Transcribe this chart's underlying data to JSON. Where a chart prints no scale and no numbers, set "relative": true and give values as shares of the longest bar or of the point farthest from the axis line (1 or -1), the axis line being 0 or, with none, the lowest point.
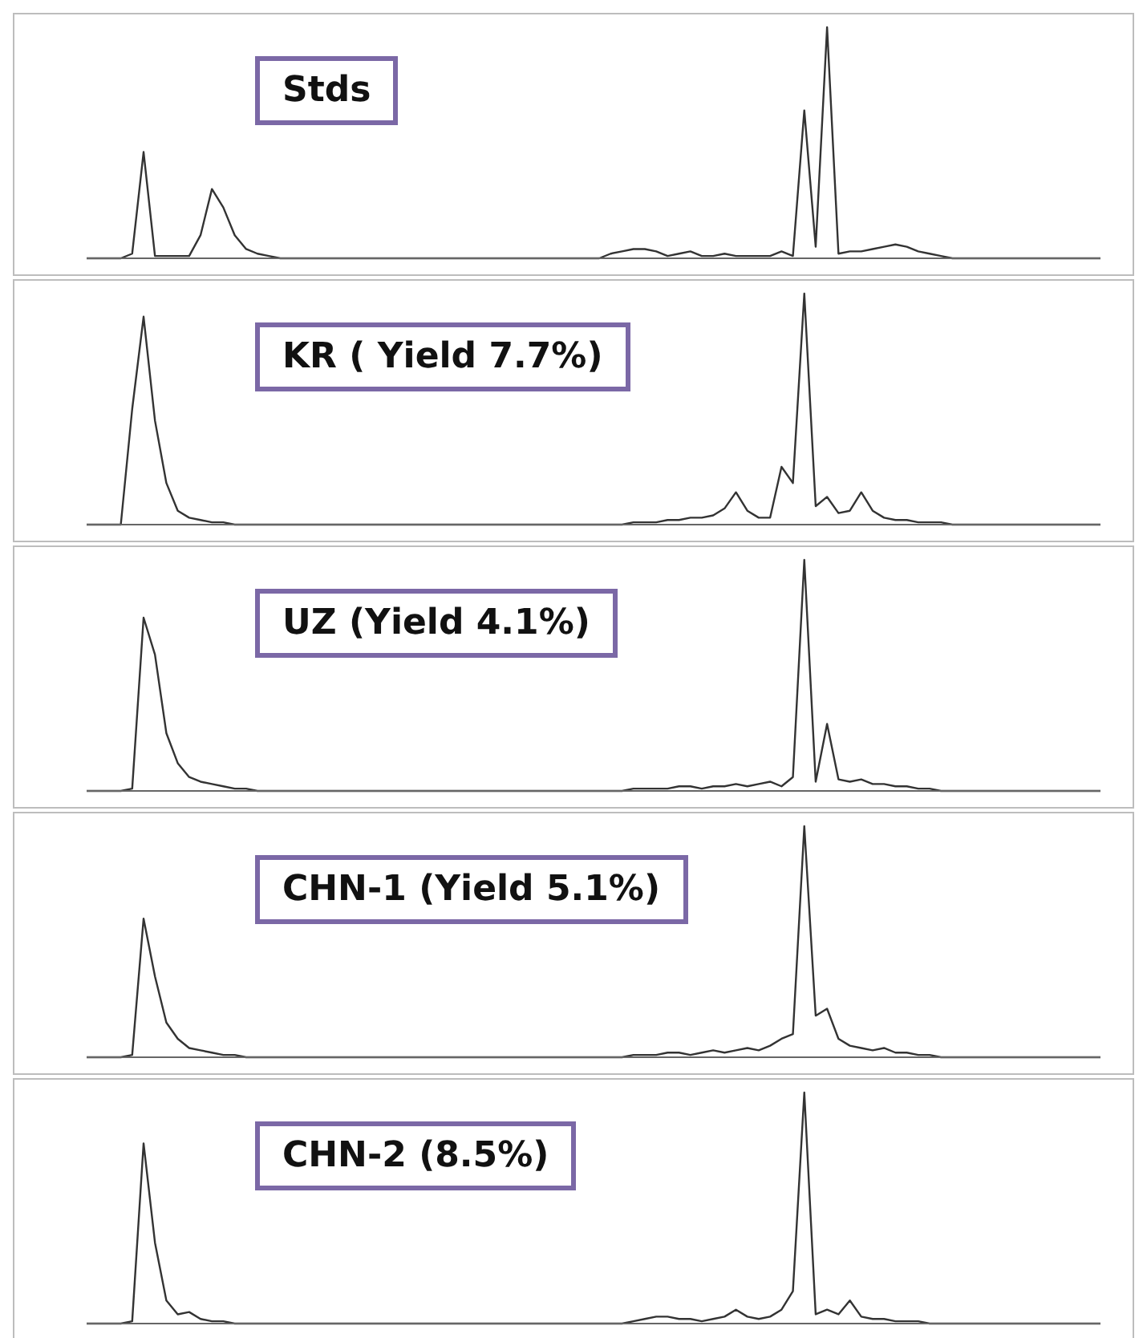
{
  "chart_data": [
    {
      "type": "line",
      "title": "Stds",
      "relative": true,
      "color": "#333333",
      "categories": [
        null,
        null,
        null,
        null,
        null,
        null,
        null,
        null,
        null,
        null,
        null,
        null,
        null,
        null,
        null,
        null,
        null,
        null,
        null,
        null,
        null,
        null,
        null,
        null,
        null,
        null,
        null,
        null,
        null,
        null,
        null,
        null,
        null,
        null,
        null,
        null,
        null,
        null,
        null,
        null,
        null,
        null,
        null,
        null,
        null,
        null,
        null,
        null,
        null,
        null,
        null,
        null,
        null,
        null,
        null,
        null,
        null,
        null,
        null,
        null,
        null,
        null,
        null,
        null,
        null,
        null,
        null,
        null,
        null,
        null,
        null,
        null,
        null,
        null,
        null,
        null,
        null,
        null,
        null,
        null,
        null,
        null,
        null,
        null,
        null,
        null,
        null,
        null,
        null,
        null
      ],
      "values": [
        0,
        0,
        0,
        0,
        0.02,
        0.46,
        0.01,
        0.01,
        0.01,
        0.01,
        0.1,
        0.3,
        0.22,
        0.1,
        0.04,
        0.02,
        0.01,
        0,
        0,
        0,
        0,
        0,
        0,
        0,
        0,
        0,
        0,
        0,
        0,
        0,
        0,
        0,
        0,
        0,
        0,
        0,
        0,
        0,
        0,
        0,
        0,
        0,
        0,
        0,
        0,
        0,
        0.02,
        0.03,
        0.04,
        0.04,
        0.03,
        0.01,
        0.02,
        0.03,
        0.01,
        0.01,
        0.02,
        0.01,
        0.01,
        0.01,
        0.01,
        0.03,
        0.01,
        0.64,
        0.05,
        1,
        0.02,
        0.03,
        0.03,
        0.04,
        0.05,
        0.06,
        0.05,
        0.03,
        0.02,
        0.01,
        0,
        0,
        0,
        0,
        0,
        0,
        0,
        0,
        0,
        0,
        0,
        0,
        0,
        0
      ]
    },
    {
      "type": "line",
      "title": "KR ( Yield 7.7%)",
      "relative": true,
      "color": "#333333",
      "categories": [
        null,
        null,
        null,
        null,
        null,
        null,
        null,
        null,
        null,
        null,
        null,
        null,
        null,
        null,
        null,
        null,
        null,
        null,
        null,
        null,
        null,
        null,
        null,
        null,
        null,
        null,
        null,
        null,
        null,
        null,
        null,
        null,
        null,
        null,
        null,
        null,
        null,
        null,
        null,
        null,
        null,
        null,
        null,
        null,
        null,
        null,
        null,
        null,
        null,
        null,
        null,
        null,
        null,
        null,
        null,
        null,
        null,
        null,
        null,
        null,
        null,
        null,
        null,
        null,
        null,
        null,
        null,
        null,
        null,
        null,
        null,
        null,
        null,
        null,
        null,
        null,
        null,
        null,
        null,
        null,
        null,
        null,
        null,
        null,
        null,
        null,
        null,
        null,
        null,
        null
      ],
      "values": [
        0,
        0,
        0,
        0,
        0.5,
        0.9,
        0.45,
        0.18,
        0.06,
        0.03,
        0.02,
        0.01,
        0.01,
        0,
        0,
        0,
        0,
        0,
        0,
        0,
        0,
        0,
        0,
        0,
        0,
        0,
        0,
        0,
        0,
        0,
        0,
        0,
        0,
        0,
        0,
        0,
        0,
        0,
        0,
        0,
        0,
        0,
        0,
        0,
        0,
        0,
        0,
        0,
        0.01,
        0.01,
        0.01,
        0.02,
        0.02,
        0.03,
        0.03,
        0.04,
        0.07,
        0.14,
        0.06,
        0.03,
        0.03,
        0.25,
        0.18,
        1,
        0.08,
        0.12,
        0.05,
        0.06,
        0.14,
        0.06,
        0.03,
        0.02,
        0.02,
        0.01,
        0.01,
        0.01,
        0,
        0,
        0,
        0,
        0,
        0,
        0,
        0,
        0,
        0,
        0,
        0,
        0,
        0
      ]
    },
    {
      "type": "line",
      "title": "UZ (Yield 4.1%)",
      "relative": true,
      "color": "#333333",
      "categories": [
        null,
        null,
        null,
        null,
        null,
        null,
        null,
        null,
        null,
        null,
        null,
        null,
        null,
        null,
        null,
        null,
        null,
        null,
        null,
        null,
        null,
        null,
        null,
        null,
        null,
        null,
        null,
        null,
        null,
        null,
        null,
        null,
        null,
        null,
        null,
        null,
        null,
        null,
        null,
        null,
        null,
        null,
        null,
        null,
        null,
        null,
        null,
        null,
        null,
        null,
        null,
        null,
        null,
        null,
        null,
        null,
        null,
        null,
        null,
        null,
        null,
        null,
        null,
        null,
        null,
        null,
        null,
        null,
        null,
        null,
        null,
        null,
        null,
        null,
        null,
        null,
        null,
        null,
        null,
        null,
        null,
        null,
        null,
        null,
        null,
        null,
        null,
        null,
        null,
        null
      ],
      "values": [
        0,
        0,
        0,
        0,
        0.01,
        0.75,
        0.59,
        0.25,
        0.12,
        0.06,
        0.04,
        0.03,
        0.02,
        0.01,
        0.01,
        0,
        0,
        0,
        0,
        0,
        0,
        0,
        0,
        0,
        0,
        0,
        0,
        0,
        0,
        0,
        0,
        0,
        0,
        0,
        0,
        0,
        0,
        0,
        0,
        0,
        0,
        0,
        0,
        0,
        0,
        0,
        0,
        0,
        0.01,
        0.01,
        0.01,
        0.01,
        0.02,
        0.02,
        0.01,
        0.02,
        0.02,
        0.03,
        0.02,
        0.03,
        0.04,
        0.02,
        0.06,
        1,
        0.04,
        0.29,
        0.05,
        0.04,
        0.05,
        0.03,
        0.03,
        0.02,
        0.02,
        0.01,
        0.01,
        0,
        0,
        0,
        0,
        0,
        0,
        0,
        0,
        0,
        0,
        0,
        0,
        0,
        0,
        0
      ]
    },
    {
      "type": "line",
      "title": "CHN-1 (Yield 5.1%)",
      "relative": true,
      "color": "#333333",
      "categories": [
        null,
        null,
        null,
        null,
        null,
        null,
        null,
        null,
        null,
        null,
        null,
        null,
        null,
        null,
        null,
        null,
        null,
        null,
        null,
        null,
        null,
        null,
        null,
        null,
        null,
        null,
        null,
        null,
        null,
        null,
        null,
        null,
        null,
        null,
        null,
        null,
        null,
        null,
        null,
        null,
        null,
        null,
        null,
        null,
        null,
        null,
        null,
        null,
        null,
        null,
        null,
        null,
        null,
        null,
        null,
        null,
        null,
        null,
        null,
        null,
        null,
        null,
        null,
        null,
        null,
        null,
        null,
        null,
        null,
        null,
        null,
        null,
        null,
        null,
        null,
        null,
        null,
        null,
        null,
        null,
        null,
        null,
        null,
        null,
        null,
        null,
        null,
        null,
        null,
        null
      ],
      "values": [
        0,
        0,
        0,
        0,
        0.01,
        0.6,
        0.35,
        0.15,
        0.08,
        0.04,
        0.03,
        0.02,
        0.01,
        0.01,
        0,
        0,
        0,
        0,
        0,
        0,
        0,
        0,
        0,
        0,
        0,
        0,
        0,
        0,
        0,
        0,
        0,
        0,
        0,
        0,
        0,
        0,
        0,
        0,
        0,
        0,
        0,
        0,
        0,
        0,
        0,
        0,
        0,
        0,
        0.01,
        0.01,
        0.01,
        0.02,
        0.02,
        0.01,
        0.02,
        0.03,
        0.02,
        0.03,
        0.04,
        0.03,
        0.05,
        0.08,
        0.1,
        1,
        0.18,
        0.21,
        0.08,
        0.05,
        0.04,
        0.03,
        0.04,
        0.02,
        0.02,
        0.01,
        0.01,
        0,
        0,
        0,
        0,
        0,
        0,
        0,
        0,
        0,
        0,
        0,
        0,
        0,
        0,
        0
      ]
    },
    {
      "type": "line",
      "title": "CHN-2 (8.5%)",
      "relative": true,
      "color": "#333333",
      "categories": [
        null,
        null,
        null,
        null,
        null,
        null,
        null,
        null,
        null,
        null,
        null,
        null,
        null,
        null,
        null,
        null,
        null,
        null,
        null,
        null,
        null,
        null,
        null,
        null,
        null,
        null,
        null,
        null,
        null,
        null,
        null,
        null,
        null,
        null,
        null,
        null,
        null,
        null,
        null,
        null,
        null,
        null,
        null,
        null,
        null,
        null,
        null,
        null,
        null,
        null,
        null,
        null,
        null,
        null,
        null,
        null,
        null,
        null,
        null,
        null,
        null,
        null,
        null,
        null,
        null,
        null,
        null,
        null,
        null,
        null,
        null,
        null,
        null,
        null,
        null,
        null,
        null,
        null,
        null,
        null,
        null,
        null,
        null,
        null,
        null,
        null,
        null,
        null,
        null,
        null
      ],
      "values": [
        0,
        0,
        0,
        0,
        0.01,
        0.78,
        0.35,
        0.1,
        0.04,
        0.05,
        0.02,
        0.01,
        0.01,
        0,
        0,
        0,
        0,
        0,
        0,
        0,
        0,
        0,
        0,
        0,
        0,
        0,
        0,
        0,
        0,
        0,
        0,
        0,
        0,
        0,
        0,
        0,
        0,
        0,
        0,
        0,
        0,
        0,
        0,
        0,
        0,
        0,
        0,
        0,
        0.01,
        0.02,
        0.03,
        0.03,
        0.02,
        0.02,
        0.01,
        0.02,
        0.03,
        0.06,
        0.03,
        0.02,
        0.03,
        0.06,
        0.14,
        1,
        0.04,
        0.06,
        0.04,
        0.1,
        0.03,
        0.02,
        0.02,
        0.01,
        0.01,
        0.01,
        0,
        0,
        0,
        0,
        0,
        0,
        0,
        0,
        0,
        0,
        0,
        0,
        0,
        0,
        0,
        0
      ]
    }
  ]
}
